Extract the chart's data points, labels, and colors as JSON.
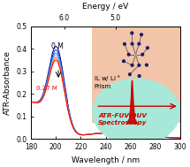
{
  "title_top": "Energy / eV",
  "xlabel": "Wavelength / nm",
  "ylabel": "ATR-Absorbance",
  "xlim": [
    180,
    300
  ],
  "ylim": [
    0.0,
    0.5
  ],
  "wavelength_ticks": [
    180,
    200,
    220,
    240,
    260,
    280,
    300
  ],
  "yticks": [
    0.0,
    0.1,
    0.2,
    0.3,
    0.4,
    0.5
  ],
  "line_colors": [
    "#000099",
    "#0044dd",
    "#3377ff",
    "#77aaff",
    "#ff8800",
    "#ff0000"
  ],
  "peak_absorbances": [
    0.388,
    0.372,
    0.358,
    0.347,
    0.337,
    0.327
  ],
  "label_0M": "0 M",
  "label_027M": "0.27 M",
  "bg_rect_color": "#f2c4a8",
  "bg_ellipse_color": "#a8e8d8",
  "spectroscopy_color": "#cc0000",
  "arrow_color": "#cc0000",
  "figsize": [
    2.15,
    1.89
  ],
  "dpi": 100
}
